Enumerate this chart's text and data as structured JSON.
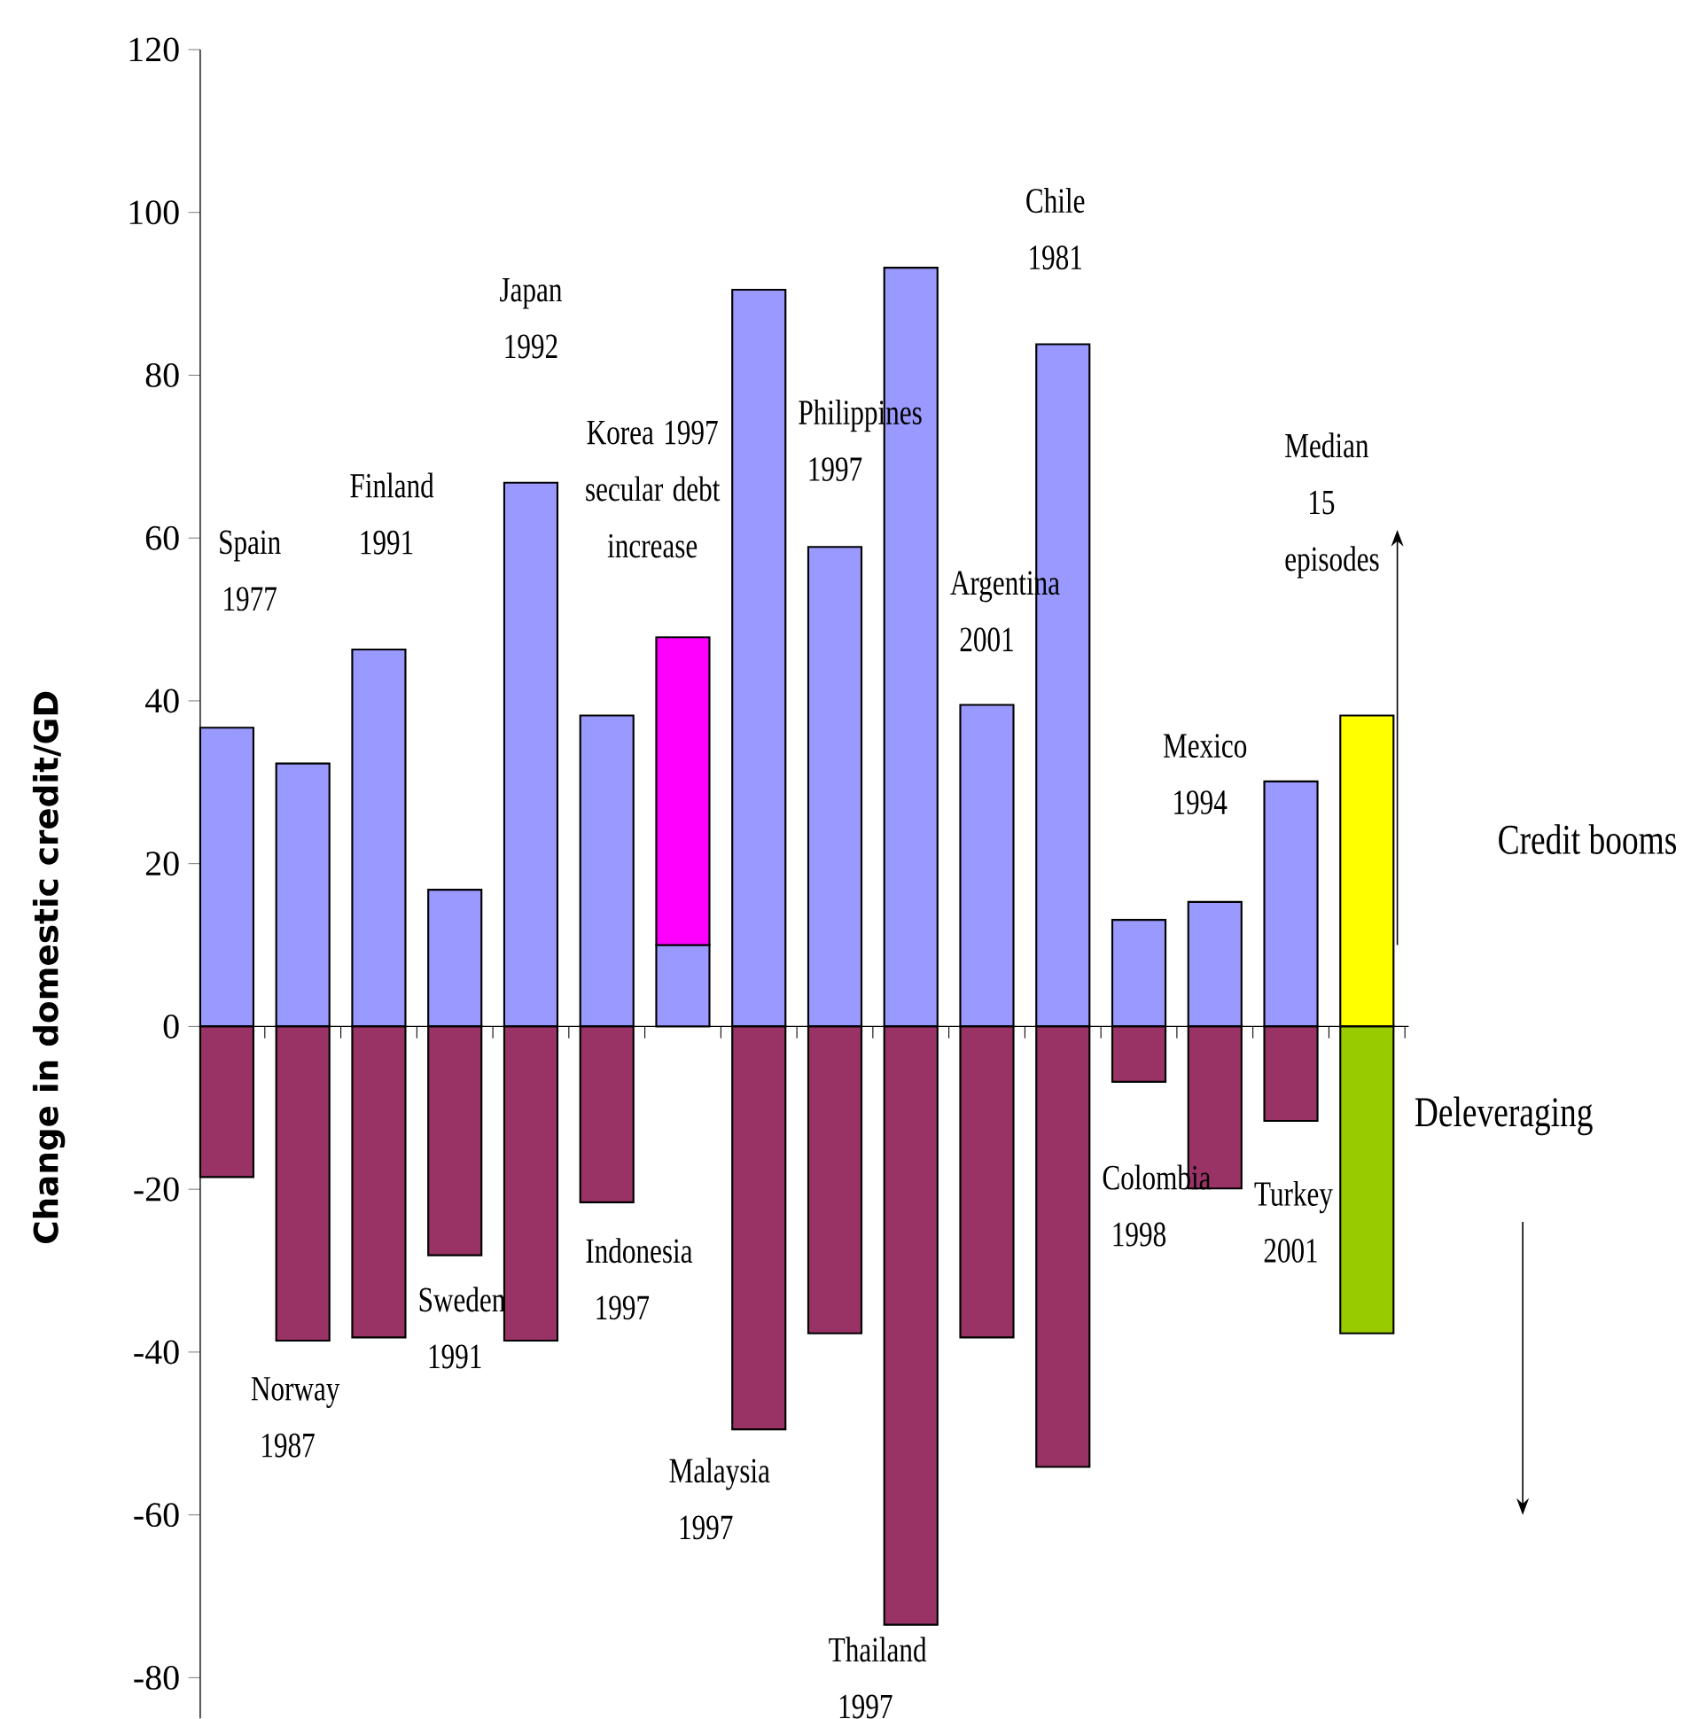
{
  "chart_data": {
    "type": "bar",
    "stacked": true,
    "categories": [
      null,
      null,
      null,
      null,
      null,
      null,
      null,
      null,
      null,
      null,
      null,
      null,
      null,
      null,
      null,
      null
    ],
    "series": [
      {
        "colors": [
          "#9999ff",
          "#9999ff",
          "#9999ff",
          "#9999ff",
          "#9999ff",
          "#9999ff",
          "#9999ff",
          "#9999ff",
          "#9999ff",
          "#9999ff",
          "#9999ff",
          "#9999ff",
          "#9999ff",
          "#9999ff",
          "#9999ff",
          "#ffff00"
        ],
        "values": [
          36.7,
          32.3,
          46.3,
          16.8,
          66.8,
          38.2,
          10,
          90.5,
          58.9,
          93.2,
          39.5,
          83.8,
          13.1,
          15.3,
          30.1,
          38.2
        ]
      },
      {
        "color": "#ff00ff",
        "values": [
          null,
          null,
          null,
          null,
          null,
          null,
          37.8,
          null,
          null,
          null,
          null,
          null,
          null,
          null,
          null,
          null
        ]
      },
      {
        "colors": [
          "#993366",
          "#993366",
          "#993366",
          "#993366",
          "#993366",
          "#993366",
          "#993366",
          "#993366",
          "#993366",
          "#993366",
          "#993366",
          "#993366",
          "#993366",
          "#993366",
          "#993366",
          "#99cc00"
        ],
        "values": [
          -18.5,
          -38.6,
          -38.2,
          -28.1,
          -38.6,
          -21.6,
          null,
          -49.5,
          -37.7,
          -73.5,
          -38.2,
          -54.1,
          -6.8,
          -19.9,
          -11.6,
          -37.7
        ]
      }
    ],
    "ylabel": "Change in domestic credit/GD",
    "ylim": [
      -85,
      120
    ],
    "yticks": [
      -80,
      -60,
      -40,
      -20,
      0,
      20,
      40,
      60,
      80,
      100,
      120
    ],
    "annotations": [
      "Spain 1977",
      "Norway 1987",
      "Finland 1991",
      "Sweden 1991",
      "Japan 1992",
      "Indonesia 1997",
      "Korea 1997 secular debt increase",
      "Malaysia 1997",
      "Philippines 1997",
      "Thailand 1997",
      "Argentina 2001",
      "Chile 1981",
      "Colombia 1998",
      "Mexico 1994",
      "Turkey 2001",
      "Median 15 episodes",
      "Credit booms",
      "Deleveraging"
    ]
  }
}
